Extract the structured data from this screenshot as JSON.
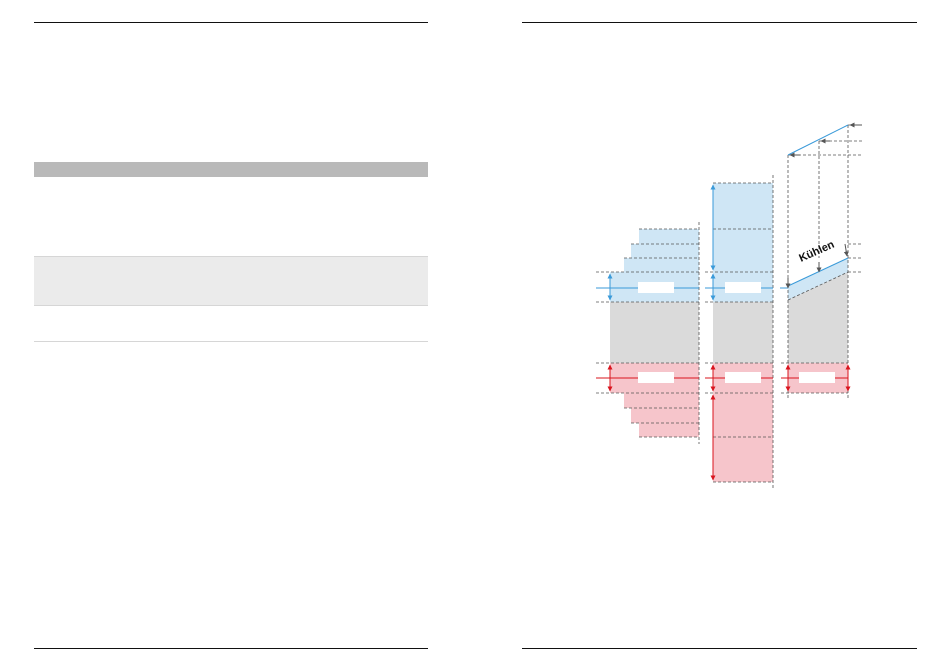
{
  "diagram": {
    "annotation_cooling": "Kühlen",
    "colors": {
      "cold_fill": "#cfe6f5",
      "cold_line": "#3a9ad9",
      "hot_fill": "#f6c5cb",
      "hot_line": "#d9141e",
      "neutral_fill": "#dadada",
      "dash": "#555555"
    }
  }
}
